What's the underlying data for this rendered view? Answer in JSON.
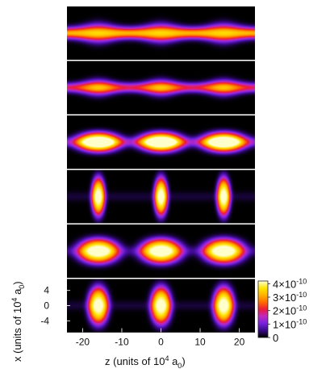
{
  "chart_data": {
    "type": "heatmap",
    "description_units": "density",
    "xlabel": {
      "main": "z  (units of 10",
      "sup": "4",
      "mid": " a",
      "sub": "0",
      "end": ")"
    },
    "ylabel": {
      "main": "x  (units of 10",
      "sup": "4",
      "mid": " a",
      "sub": "0",
      "end": ")"
    },
    "x_ticks": [
      -20,
      -10,
      0,
      10,
      20
    ],
    "x_tick_labels": [
      "-20",
      "-10",
      "0",
      "10",
      "20"
    ],
    "xlim": [
      -24,
      24
    ],
    "y_ticks": [
      4,
      0,
      -4
    ],
    "y_tick_labels": [
      "4",
      "0",
      "-4"
    ],
    "ylim": [
      -7,
      7
    ],
    "colorbar": {
      "range": [
        0,
        4.2e-10
      ],
      "ticks": [
        4e-10,
        3e-10,
        2e-10,
        1e-10,
        0
      ],
      "tick_labels": [
        {
          "base": "4×10",
          "exp": "-10"
        },
        {
          "base": "3×10",
          "exp": "-10"
        },
        {
          "base": "2×10",
          "exp": "-10"
        },
        {
          "base": "1×10",
          "exp": "-10"
        },
        {
          "base": "0",
          "exp": ""
        }
      ],
      "colormap": [
        "#000000",
        "#3a0a8c",
        "#7a22e0",
        "#c02ac0",
        "#ee1a3a",
        "#ff6a00",
        "#ffb000",
        "#ffe400",
        "#ffffcc"
      ]
    },
    "panels": [
      {
        "shape": "band",
        "band_width": 1.3,
        "peak": 3.6e-10,
        "modulation": 0.12,
        "centers": [
          -16,
          0,
          16
        ]
      },
      {
        "shape": "band",
        "band_width": 1.1,
        "peak": 3.4e-10,
        "modulation": 0.45,
        "centers": [
          -16,
          0,
          16
        ]
      },
      {
        "shape": "blobs",
        "centers": [
          -16,
          0,
          16
        ],
        "sz": 4.5,
        "sx": 2.1,
        "peak": 4.2e-10,
        "halo": 0.25
      },
      {
        "shape": "blobs",
        "centers": [
          -16,
          0,
          16
        ],
        "sz": 1.4,
        "sx": 4.0,
        "peak": 4.2e-10,
        "halo": 0.05
      },
      {
        "shape": "blobs",
        "centers": [
          -16,
          0,
          16
        ],
        "sz": 4.2,
        "sx": 2.6,
        "peak": 4.2e-10,
        "halo": 0.1
      },
      {
        "shape": "blobs",
        "centers": [
          -16,
          0,
          16
        ],
        "sz": 2.1,
        "sx": 3.9,
        "peak": 4.2e-10,
        "halo": 0.05
      }
    ]
  }
}
